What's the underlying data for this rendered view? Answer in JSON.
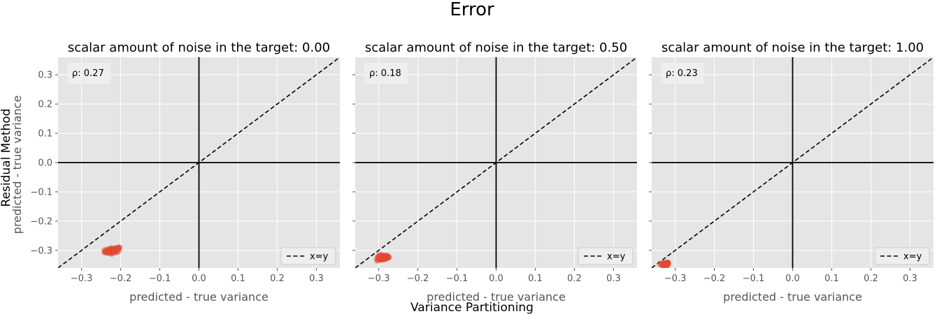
{
  "figure": {
    "title": "Error",
    "supxlabel": "Variance Partitioning",
    "supylabel": "Residual Method",
    "ylabel": "predicted - true variance"
  },
  "colors": {
    "panel_bg": "#e5e5e5",
    "grid": "#ffffff",
    "points": "#e24a33",
    "axes_lines": "#000000"
  },
  "chart_data": [
    {
      "type": "scatter",
      "title": "scalar amount of noise in the target: 0.00",
      "xlabel": "predicted - true variance",
      "ylabel": "predicted - true variance",
      "xlim": [
        -0.36,
        0.36
      ],
      "ylim": [
        -0.36,
        0.36
      ],
      "xticks": [
        "−0.3",
        "−0.2",
        "−0.1",
        "0.0",
        "0.1",
        "0.2",
        "0.3"
      ],
      "yticks": [
        "−0.3",
        "−0.2",
        "−0.1",
        "0.0",
        "0.1",
        "0.2",
        "0.3"
      ],
      "annotation": "ρ: 0.27",
      "legend": {
        "entries": [
          "x=y"
        ],
        "placement": "bottom-right"
      },
      "cluster": {
        "x_center": -0.22,
        "y_center": -0.3,
        "x_spread": 0.02,
        "y_spread": 0.008
      }
    },
    {
      "type": "scatter",
      "title": "scalar amount of noise in the target: 0.50",
      "xlabel": "predicted - true variance",
      "xlim": [
        -0.36,
        0.36
      ],
      "ylim": [
        -0.36,
        0.36
      ],
      "xticks": [
        "−0.3",
        "−0.2",
        "−0.1",
        "0.0",
        "0.1",
        "0.2",
        "0.3"
      ],
      "annotation": "ρ: 0.18",
      "legend": {
        "entries": [
          "x=y"
        ],
        "placement": "bottom-right"
      },
      "cluster": {
        "x_center": -0.29,
        "y_center": -0.325,
        "x_spread": 0.015,
        "y_spread": 0.008
      }
    },
    {
      "type": "scatter",
      "title": "scalar amount of noise in the target: 1.00",
      "xlabel": "predicted - true variance",
      "xlim": [
        -0.36,
        0.36
      ],
      "ylim": [
        -0.36,
        0.36
      ],
      "xticks": [
        "−0.3",
        "−0.2",
        "−0.1",
        "0.0",
        "0.1",
        "0.2",
        "0.3"
      ],
      "annotation": "ρ: 0.23",
      "legend": {
        "entries": [
          "x=y"
        ],
        "placement": "bottom-right"
      },
      "cluster": {
        "x_center": -0.325,
        "y_center": -0.347,
        "x_spread": 0.008,
        "y_spread": 0.006
      }
    }
  ]
}
